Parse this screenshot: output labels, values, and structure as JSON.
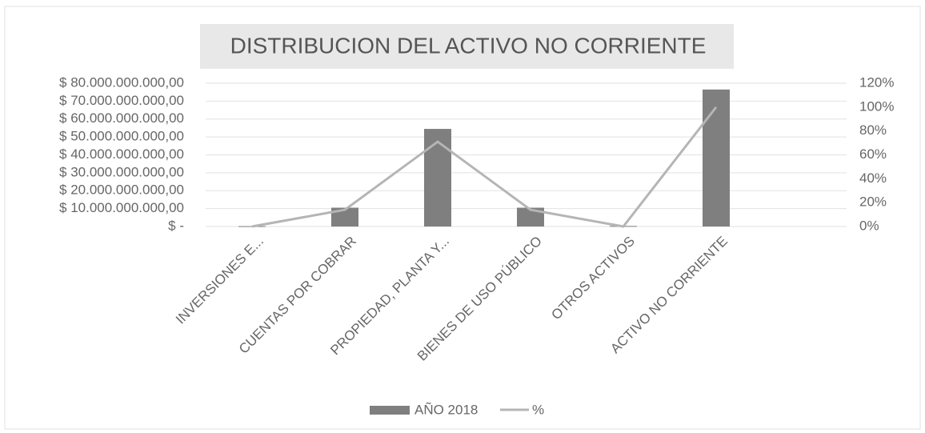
{
  "chart_data": {
    "type": "bar_line",
    "title": "DISTRIBUCION DEL ACTIVO NO CORRIENTE",
    "categories": [
      "INVERSIONES E...",
      "CUENTAS POR COBRAR",
      "PROPIEDAD, PLANTA  Y...",
      "BIENES DE USO PÚBLICO",
      "OTROS ACTIVOS",
      "ACTIVO NO CORRIENTE"
    ],
    "series": [
      {
        "name": "AÑO 2018",
        "type": "bar",
        "color": "#7f7f7f",
        "values": [
          200000000,
          10500000000,
          54500000000,
          10500000000,
          300000000,
          76500000000
        ]
      },
      {
        "name": "%",
        "type": "line",
        "axis": "y2",
        "color": "#b5b5b5",
        "values": [
          0,
          14,
          71,
          14,
          0,
          100
        ]
      }
    ],
    "ylim": [
      0,
      80000000000
    ],
    "yticks": [
      {
        "value": 0,
        "label": "$ -"
      },
      {
        "value": 10000000000,
        "label": "$ 10.000.000.000,00"
      },
      {
        "value": 20000000000,
        "label": "$ 20.000.000.000,00"
      },
      {
        "value": 30000000000,
        "label": "$ 30.000.000.000,00"
      },
      {
        "value": 40000000000,
        "label": "$ 40.000.000.000,00"
      },
      {
        "value": 50000000000,
        "label": "$ 50.000.000.000,00"
      },
      {
        "value": 60000000000,
        "label": "$ 60.000.000.000,00"
      },
      {
        "value": 70000000000,
        "label": "$ 70.000.000.000,00"
      },
      {
        "value": 80000000000,
        "label": "$ 80.000.000.000,00"
      }
    ],
    "y2lim": [
      0,
      120
    ],
    "y2ticks": [
      {
        "value": 0,
        "label": "0%"
      },
      {
        "value": 20,
        "label": "20%"
      },
      {
        "value": 40,
        "label": "40%"
      },
      {
        "value": 60,
        "label": "60%"
      },
      {
        "value": 80,
        "label": "80%"
      },
      {
        "value": 100,
        "label": "100%"
      },
      {
        "value": 120,
        "label": "120%"
      }
    ],
    "grid": true,
    "legend": "bottom"
  }
}
